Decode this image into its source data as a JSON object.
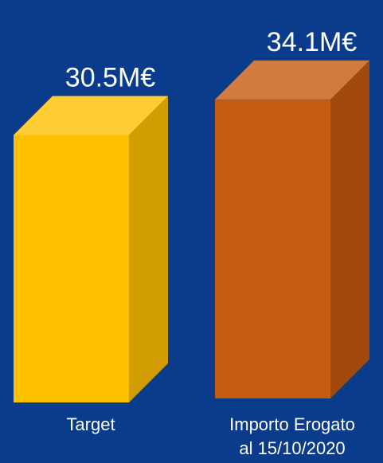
{
  "chart_data": {
    "type": "bar3d",
    "categories": [
      "Target",
      "Importo Erogato al 15/10/2020"
    ],
    "values": [
      30.5,
      34.1
    ],
    "value_labels": [
      "30.5M€",
      "34.1M€"
    ],
    "colors": [
      "#ffc000",
      "#c55a11"
    ]
  }
}
